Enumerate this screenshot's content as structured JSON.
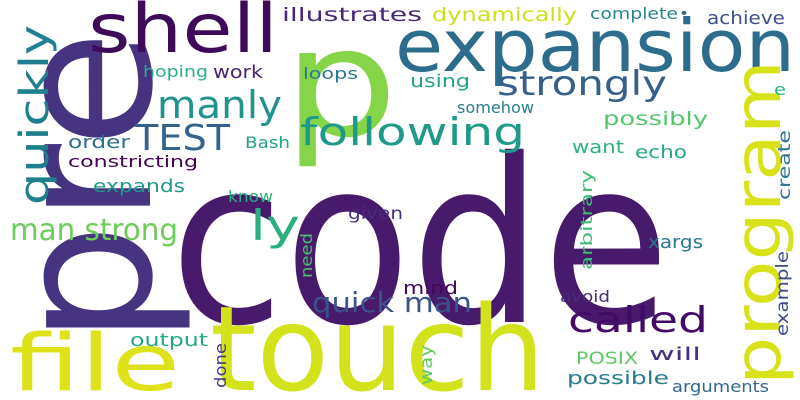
{
  "word_cloud": {
    "background": "#ffffff",
    "palette": [
      "#440154",
      "#472f7d",
      "#3b518b",
      "#2c718e",
      "#21908d",
      "#27ad81",
      "#5cc863",
      "#aadc32",
      "#dde318"
    ],
    "words": [
      {
        "id": "code",
        "text": "code",
        "color": "#481a6c"
      },
      {
        "id": "pre",
        "text": "pre",
        "color": "#463480"
      },
      {
        "id": "p",
        "text": "p",
        "color": "#86d549"
      },
      {
        "id": "touch",
        "text": "touch",
        "color": "#d2e21b"
      },
      {
        "id": "expansion",
        "text": "expansion",
        "color": "#2c6d8e"
      },
      {
        "id": "program",
        "text": "program",
        "color": "#d8e219"
      },
      {
        "id": "shell",
        "text": "shell",
        "color": "#3e0a5a"
      },
      {
        "id": "file",
        "text": "file",
        "color": "#dde318"
      },
      {
        "id": "following",
        "text": "following",
        "color": "#1f9a8a"
      },
      {
        "id": "quickly",
        "text": "quickly",
        "color": "#1e7f8e"
      },
      {
        "id": "strongly",
        "text": "strongly",
        "color": "#355f8d"
      },
      {
        "id": "manly",
        "text": "manly",
        "color": "#20938c"
      },
      {
        "id": "ly",
        "text": "ly",
        "color": "#2ab07f"
      },
      {
        "id": "test",
        "text": "TEST",
        "color": "#33638d"
      },
      {
        "id": "man-strong",
        "text": "man strong",
        "color": "#6ccd5a"
      },
      {
        "id": "called",
        "text": "called",
        "color": "#440a68"
      },
      {
        "id": "quick-man",
        "text": "quick man",
        "color": "#3a538b"
      },
      {
        "id": "illustrates",
        "text": "illustrates",
        "color": "#482878"
      },
      {
        "id": "dynamically",
        "text": "dynamically",
        "color": "#cbe11e"
      },
      {
        "id": "complete",
        "text": "complete",
        "color": "#25858e"
      },
      {
        "id": "achieve",
        "text": "achieve",
        "color": "#3b528b"
      },
      {
        "id": "hoping",
        "text": "hoping",
        "color": "#29af7f"
      },
      {
        "id": "work",
        "text": "work",
        "color": "#482374"
      },
      {
        "id": "loops",
        "text": "loops",
        "color": "#2a788e"
      },
      {
        "id": "using",
        "text": "using",
        "color": "#20a386"
      },
      {
        "id": "somehow",
        "text": "somehow",
        "color": "#277f8e"
      },
      {
        "id": "possibly",
        "text": "possibly",
        "color": "#52c569"
      },
      {
        "id": "order",
        "text": "order",
        "color": "#2e6e8e"
      },
      {
        "id": "constricting",
        "text": "constricting",
        "color": "#440154"
      },
      {
        "id": "bash",
        "text": "Bash",
        "color": "#20a486"
      },
      {
        "id": "want",
        "text": "want",
        "color": "#2db27d"
      },
      {
        "id": "echo",
        "text": "echo",
        "color": "#25ab82"
      },
      {
        "id": "create",
        "text": "create",
        "color": "#2c738e"
      },
      {
        "id": "e",
        "text": "e",
        "color": "#2eb37c"
      },
      {
        "id": "expands",
        "text": "expands",
        "color": "#1f988b"
      },
      {
        "id": "know",
        "text": "know",
        "color": "#2ab07f"
      },
      {
        "id": "given",
        "text": "given",
        "color": "#472d7b"
      },
      {
        "id": "arbitrary",
        "text": "arbitrary",
        "color": "#3bbb75"
      },
      {
        "id": "xargs",
        "text": "xargs",
        "color": "#2a768e"
      },
      {
        "id": "need",
        "text": "need",
        "color": "#4ac16d"
      },
      {
        "id": "mind",
        "text": "mind",
        "color": "#450559"
      },
      {
        "id": "example",
        "text": "example",
        "color": "#3e4a89"
      },
      {
        "id": "avoid",
        "text": "avoid",
        "color": "#472c7a"
      },
      {
        "id": "output",
        "text": "output",
        "color": "#23a983"
      },
      {
        "id": "done",
        "text": "done",
        "color": "#453882"
      },
      {
        "id": "way",
        "text": "way",
        "color": "#5ec962"
      },
      {
        "id": "posix",
        "text": "POSIX",
        "color": "#5ec962"
      },
      {
        "id": "will",
        "text": "will",
        "color": "#46327e"
      },
      {
        "id": "possible",
        "text": "possible",
        "color": "#287c8e"
      },
      {
        "id": "arguments",
        "text": "arguments",
        "color": "#31688e"
      },
      {
        "id": "dot",
        "text": "•",
        "color": "#31688e"
      }
    ]
  }
}
